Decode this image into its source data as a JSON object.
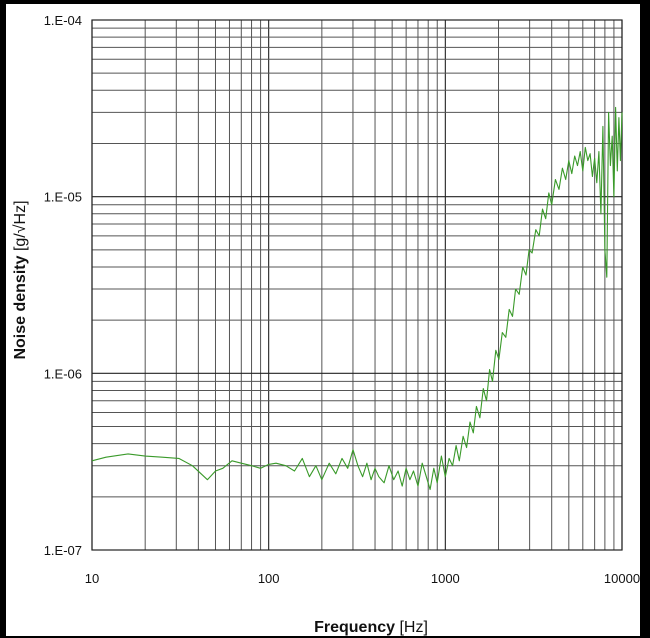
{
  "chart_data": {
    "type": "line",
    "x_scale": "log",
    "y_scale": "log",
    "xlim": [
      10,
      10000
    ],
    "ylim": [
      1e-07,
      0.0001
    ],
    "grid": true,
    "xlabel_main": "Frequency",
    "xlabel_unit": "[Hz]",
    "ylabel_main": "Noise density",
    "ylabel_unit": "[g/√Hz]",
    "x_ticks": [
      "10",
      "100",
      "1000",
      "10000"
    ],
    "y_ticks": [
      "1.E-07",
      "1.E-06",
      "1.E-05",
      "1.E-04"
    ],
    "series": [
      {
        "color": "#3a9a2a",
        "x": [
          10,
          12,
          16,
          20,
          25,
          31,
          37,
          45,
          50,
          55,
          62,
          70,
          80,
          90,
          100,
          110,
          125,
          140,
          155,
          170,
          185,
          200,
          220,
          240,
          260,
          280,
          300,
          320,
          340,
          360,
          380,
          400,
          420,
          450,
          480,
          510,
          540,
          570,
          600,
          630,
          660,
          700,
          740,
          780,
          820,
          860,
          900,
          950,
          1000,
          1050,
          1100,
          1150,
          1200,
          1260,
          1320,
          1380,
          1440,
          1500,
          1570,
          1640,
          1710,
          1780,
          1850,
          1930,
          2010,
          2100,
          2200,
          2300,
          2400,
          2500,
          2620,
          2740,
          2860,
          2980,
          3100,
          3250,
          3400,
          3550,
          3700,
          3850,
          4000,
          4200,
          4400,
          4600,
          4800,
          5000,
          5200,
          5400,
          5600,
          5800,
          6000,
          6200,
          6400,
          6600,
          6800,
          7000,
          7200,
          7400,
          7600,
          7800,
          8000,
          8200,
          8400,
          8600,
          8800,
          9000,
          9200,
          9400,
          9600,
          9800,
          10000
        ],
        "y": [
          3.2e-07,
          3.35e-07,
          3.5e-07,
          3.4e-07,
          3.35e-07,
          3.3e-07,
          3e-07,
          2.5e-07,
          2.8e-07,
          2.9e-07,
          3.2e-07,
          3.1e-07,
          3e-07,
          2.9e-07,
          3.05e-07,
          3.1e-07,
          3e-07,
          2.8e-07,
          3.3e-07,
          2.6e-07,
          3e-07,
          2.5e-07,
          3.1e-07,
          2.7e-07,
          3.3e-07,
          2.9e-07,
          3.7e-07,
          3e-07,
          2.6e-07,
          3.1e-07,
          2.5e-07,
          2.9e-07,
          2.6e-07,
          2.4e-07,
          3e-07,
          2.5e-07,
          2.8e-07,
          2.3e-07,
          2.9e-07,
          2.5e-07,
          2.8e-07,
          2.3e-07,
          3.1e-07,
          2.6e-07,
          2.2e-07,
          2.9e-07,
          2.4e-07,
          3.4e-07,
          2.6e-07,
          3.3e-07,
          3e-07,
          3.9e-07,
          3.2e-07,
          4.4e-07,
          3.8e-07,
          5.3e-07,
          4.6e-07,
          6.5e-07,
          5.6e-07,
          8.2e-07,
          7e-07,
          1.05e-06,
          9e-07,
          1.35e-06,
          1.2e-06,
          1.7e-06,
          1.6e-06,
          2.3e-06,
          2.1e-06,
          3e-06,
          2.8e-06,
          4e-06,
          3.6e-06,
          5e-06,
          4.8e-06,
          6.5e-06,
          6e-06,
          8.5e-06,
          7.5e-06,
          1.05e-05,
          9e-06,
          1.25e-05,
          1.1e-05,
          1.45e-05,
          1.25e-05,
          1.6e-05,
          1.35e-05,
          1.7e-05,
          1.5e-05,
          1.8e-05,
          1.4e-05,
          1.9e-05,
          1.6e-05,
          1.75e-05,
          1.3e-05,
          1.65e-05,
          1.2e-05,
          1.8e-05,
          8e-06,
          2.5e-05,
          5e-06,
          3.5e-06,
          3e-05,
          1.5e-05,
          2.2e-05,
          1e-05,
          3.2e-05,
          1.4e-05,
          2.8e-05,
          1.6e-05,
          3e-05
        ]
      }
    ]
  }
}
